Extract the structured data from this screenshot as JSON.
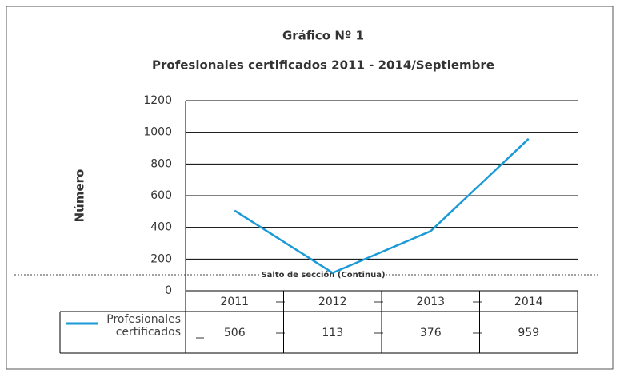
{
  "chart_data": {
    "type": "line",
    "title": "Gráfico Nº 1",
    "subtitle": "Profesionales certificados 2011 - 2014/Septiembre",
    "y_label": "Número",
    "annotation": "Salto de sección (Continua)",
    "categories": [
      "2011",
      "2012",
      "2013",
      "2014"
    ],
    "series": [
      {
        "name": "Profesionales certificados",
        "color": "#1a9ad6",
        "values": [
          506,
          113,
          376,
          959
        ]
      }
    ],
    "ylim": [
      0,
      1200
    ],
    "yticks": [
      0,
      200,
      400,
      600,
      800,
      1000,
      1200
    ],
    "grid": true
  }
}
